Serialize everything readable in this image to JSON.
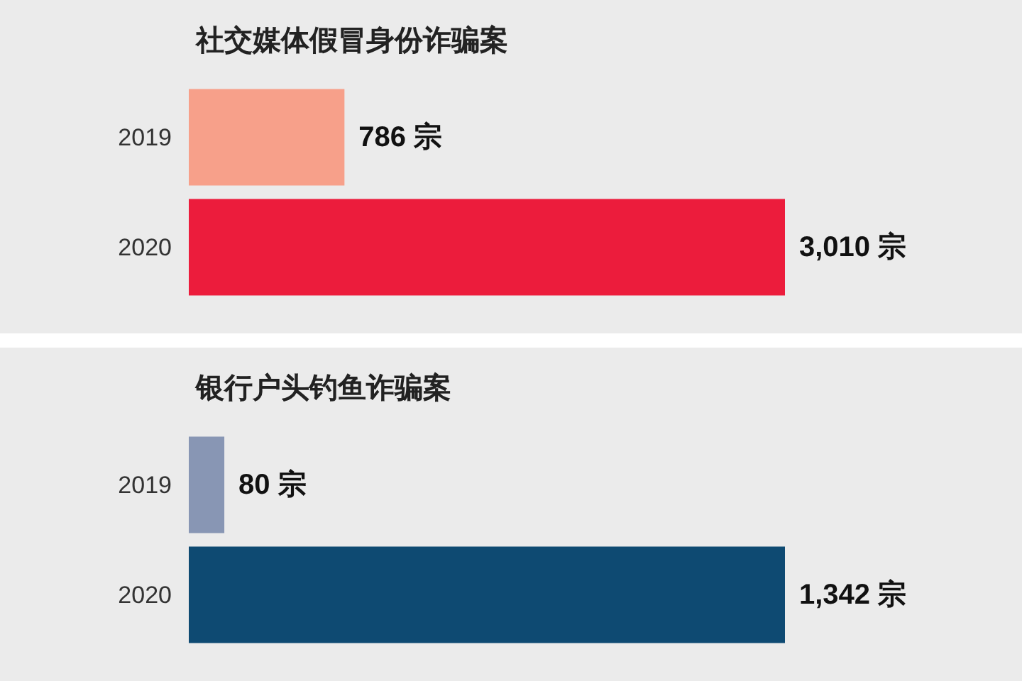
{
  "chart_data": [
    {
      "type": "bar",
      "orientation": "horizontal",
      "title": "社交媒体假冒身份诈骗案",
      "categories": [
        "2019",
        "2020"
      ],
      "values": [
        786,
        3010
      ],
      "colors": [
        "#f7a08a",
        "#ec1c3c"
      ],
      "value_labels": [
        "786 宗",
        "3,010 宗"
      ]
    },
    {
      "type": "bar",
      "orientation": "horizontal",
      "title": "银行户头钓鱼诈骗案",
      "categories": [
        "2019",
        "2020"
      ],
      "values": [
        80,
        1342
      ],
      "colors": [
        "#8896b4",
        "#0e4a72"
      ],
      "value_labels": [
        "80 宗",
        "1,342 宗"
      ]
    }
  ]
}
